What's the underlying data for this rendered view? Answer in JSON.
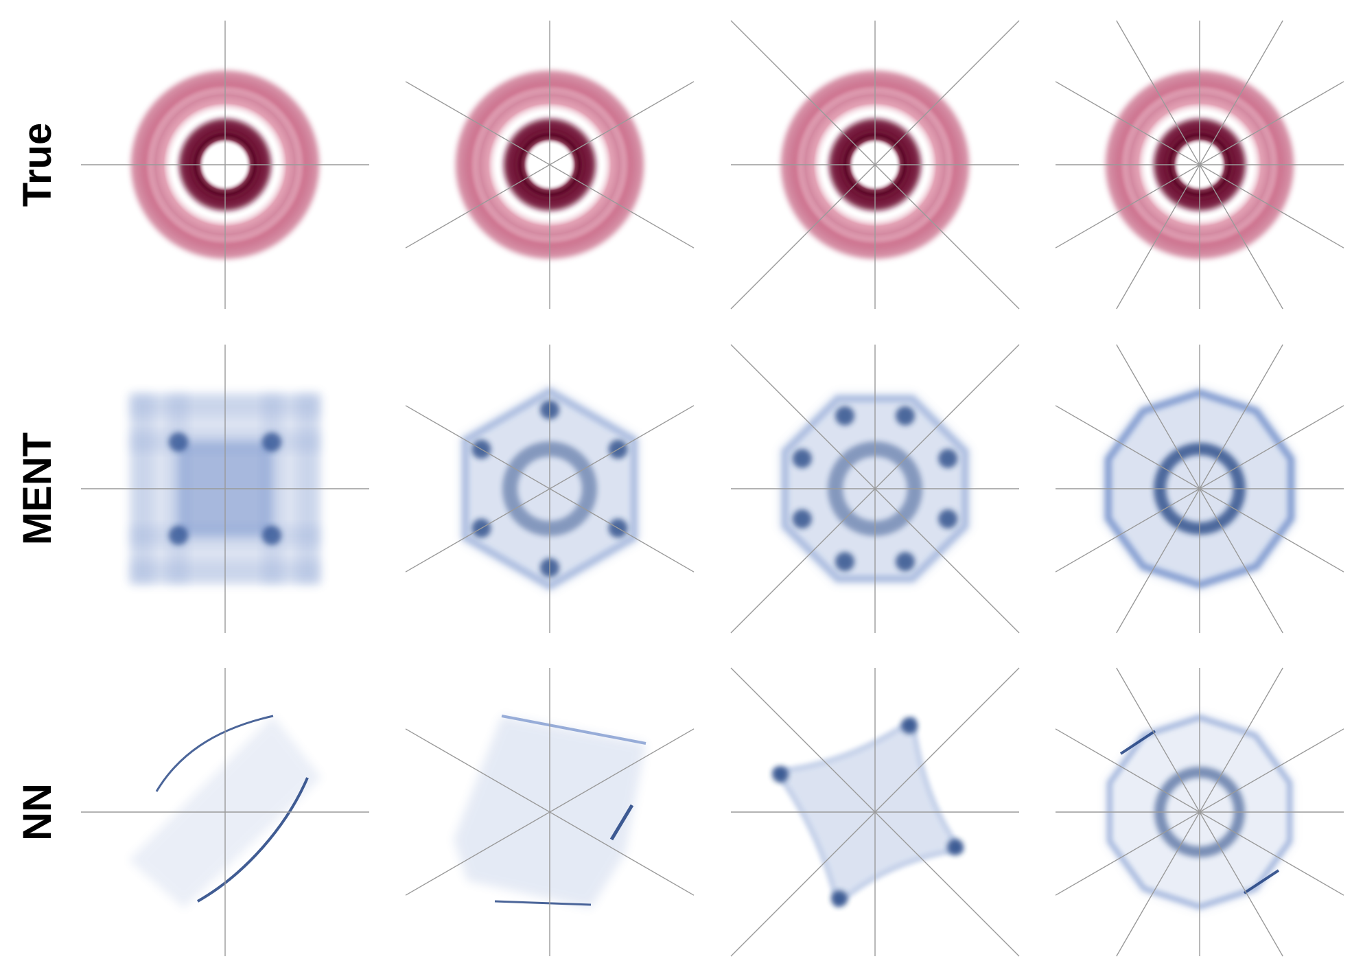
{
  "rows": [
    {
      "label": "True",
      "method": "true",
      "color": "#7a1538"
    },
    {
      "label": "MENT",
      "method": "ment",
      "color": "#2a56a8"
    },
    {
      "label": "NN",
      "method": "nn",
      "color": "#2a56a8"
    }
  ],
  "columns": [
    {
      "projection_count": 2
    },
    {
      "projection_count": 3
    },
    {
      "projection_count": 4
    },
    {
      "projection_count": 6
    }
  ],
  "colors": {
    "true_distribution": "#b02a55",
    "true_ring": "#6d0f30",
    "reconstruction": "#3b63b5",
    "reconstruction_dark": "#1e3f80",
    "projection_line": "#9a9a9a"
  }
}
